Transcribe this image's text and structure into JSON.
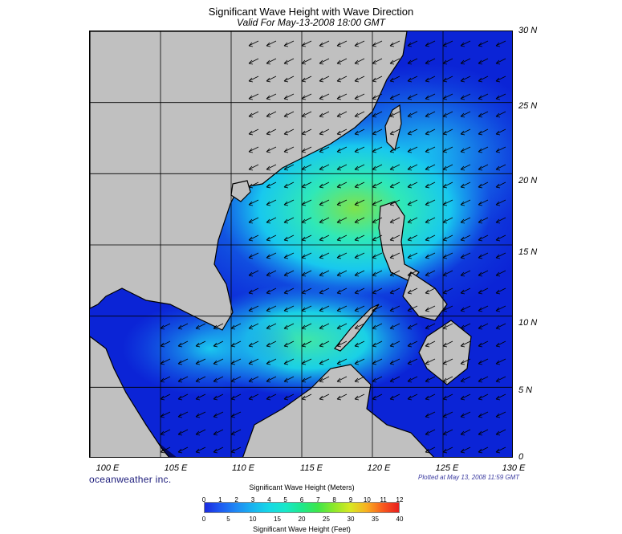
{
  "title": "Significant Wave Height with Wave Direction",
  "subtitle": "Valid For May-13-2008 18:00 GMT",
  "map": {
    "lon_range": [
      100,
      130
    ],
    "lat_range": [
      0,
      30
    ],
    "lat_labels": [
      "30 N",
      "25 N",
      "20 N",
      "15 N",
      "10 N",
      "5 N",
      "0"
    ],
    "lon_labels": [
      "100 E",
      "105 E",
      "110 E",
      "115 E",
      "120 E",
      "125 E",
      "130 E"
    ],
    "land_color": "#c0c0c0",
    "grid": true,
    "wave_direction": "arrows from northeast toward southwest",
    "max_wave_region": "Luzon Strait to central South China Sea"
  },
  "brand": "oceanweather inc.",
  "plotted": "Plotted at May 13, 2008 11:59 GMT",
  "legend": {
    "title_m": "Significant Wave Height (Meters)",
    "title_ft": "Significant Wave Height (Feet)",
    "meters": [
      "0",
      "1",
      "2",
      "3",
      "4",
      "5",
      "6",
      "7",
      "8",
      "9",
      "10",
      "11",
      "12"
    ],
    "feet": [
      "0",
      "5",
      "10",
      "15",
      "20",
      "25",
      "30",
      "35",
      "40"
    ],
    "colors": [
      "#1a2adf",
      "#1e5cf2",
      "#1f8cf4",
      "#18b5f0",
      "#16d8e6",
      "#18e8c8",
      "#1ee88c",
      "#3ee64a",
      "#8ee82a",
      "#d8e823",
      "#f8b020",
      "#f85a1e",
      "#e81e1e"
    ]
  }
}
